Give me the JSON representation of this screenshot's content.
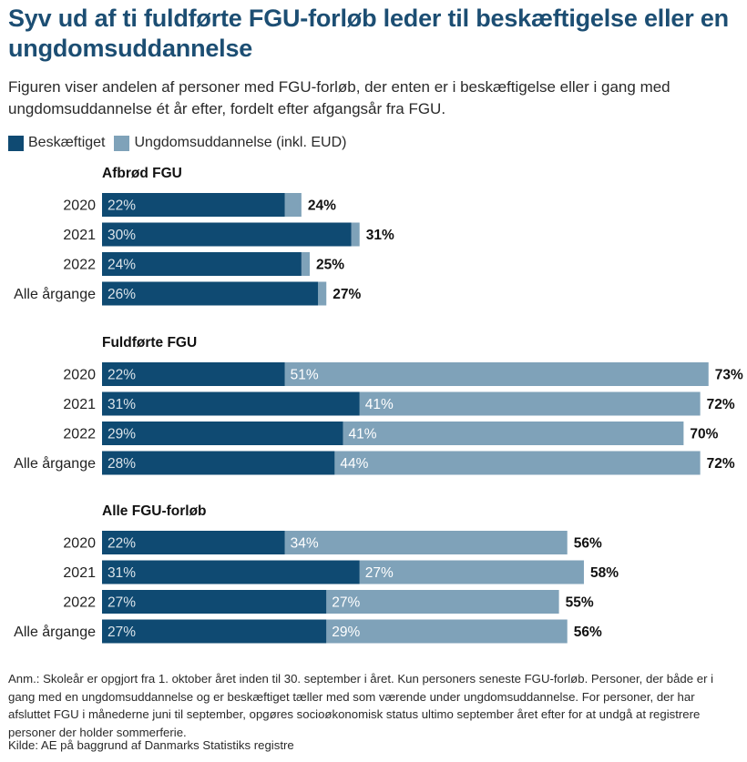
{
  "title": "Syv ud af ti fuldførte FGU-forløb leder til beskæftigelse eller en ungdomsuddannelse",
  "subtitle": "Figuren viser andelen af personer med FGU-forløb, der enten er i beskæftigelse eller i gang med ungdomsuddannelse ét år efter, fordelt efter afgangsår fra FGU.",
  "legend": {
    "employed": "Beskæftiget",
    "education": "Ungdomsuddannelse (inkl. EUD)"
  },
  "colors": {
    "employed": "#0f4a72",
    "education": "#7fa2b9",
    "title": "#1c4e73"
  },
  "note": "Anm.: Skoleår er opgjort fra 1. oktober året inden til 30. september i året. Kun personers seneste FGU-forløb. Personer, der både er i gang med en ungdomsuddannelse og er beskæftiget tæller med som værende under ungdomsuddannelse. For personer, der har afsluttet FGU i månederne juni til september, opgøres socioøkonomisk status ultimo september året efter for at undgå at registrere personer der holder sommerferie.",
  "source": "Kilde: AE på baggrund af Danmarks Statistiks registre",
  "chart_data": {
    "type": "bar",
    "orientation": "horizontal",
    "stacked": true,
    "xlim": [
      0,
      73
    ],
    "categories": [
      "2020",
      "2021",
      "2022",
      "Alle årgange"
    ],
    "series_names": [
      "Beskæftiget",
      "Ungdomsuddannelse (inkl. EUD)"
    ],
    "groups": [
      {
        "title": "Afbrød FGU",
        "rows": [
          {
            "label": "2020",
            "employed": 22,
            "education": 2,
            "total": 24,
            "employed_label": "22%",
            "education_label": "",
            "total_label": "24%"
          },
          {
            "label": "2021",
            "employed": 30,
            "education": 1,
            "total": 31,
            "employed_label": "30%",
            "education_label": "",
            "total_label": "31%"
          },
          {
            "label": "2022",
            "employed": 24,
            "education": 1,
            "total": 25,
            "employed_label": "24%",
            "education_label": "",
            "total_label": "25%"
          },
          {
            "label": "Alle årgange",
            "employed": 26,
            "education": 1,
            "total": 27,
            "employed_label": "26%",
            "education_label": "",
            "total_label": "27%"
          }
        ]
      },
      {
        "title": "Fuldførte FGU",
        "rows": [
          {
            "label": "2020",
            "employed": 22,
            "education": 51,
            "total": 73,
            "employed_label": "22%",
            "education_label": "51%",
            "total_label": "73%"
          },
          {
            "label": "2021",
            "employed": 31,
            "education": 41,
            "total": 72,
            "employed_label": "31%",
            "education_label": "41%",
            "total_label": "72%"
          },
          {
            "label": "2022",
            "employed": 29,
            "education": 41,
            "total": 70,
            "employed_label": "29%",
            "education_label": "41%",
            "total_label": "70%"
          },
          {
            "label": "Alle årgange",
            "employed": 28,
            "education": 44,
            "total": 72,
            "employed_label": "28%",
            "education_label": "44%",
            "total_label": "72%"
          }
        ]
      },
      {
        "title": "Alle FGU-forløb",
        "rows": [
          {
            "label": "2020",
            "employed": 22,
            "education": 34,
            "total": 56,
            "employed_label": "22%",
            "education_label": "34%",
            "total_label": "56%"
          },
          {
            "label": "2021",
            "employed": 31,
            "education": 27,
            "total": 58,
            "employed_label": "31%",
            "education_label": "27%",
            "total_label": "58%"
          },
          {
            "label": "2022",
            "employed": 27,
            "education": 27,
            "total": 55,
            "employed_label": "27%",
            "education_label": "27%",
            "total_label": "55%"
          },
          {
            "label": "Alle årgange",
            "employed": 27,
            "education": 29,
            "total": 56,
            "employed_label": "27%",
            "education_label": "29%",
            "total_label": "56%"
          }
        ]
      }
    ]
  }
}
